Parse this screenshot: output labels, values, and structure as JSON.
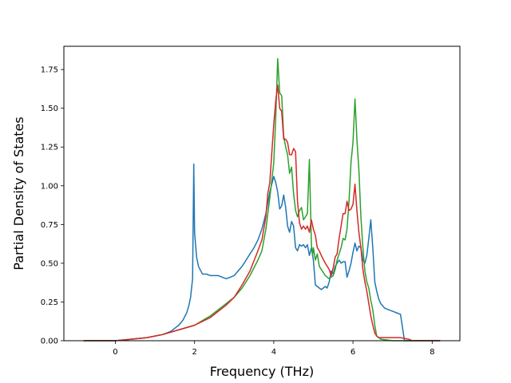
{
  "chart_data": {
    "type": "line",
    "xlabel": "Frequency (THz)",
    "ylabel": "Partial Density of States",
    "xlim": [
      -1.3,
      8.7
    ],
    "ylim": [
      0.0,
      1.9
    ],
    "xticks": [
      0,
      2,
      4,
      6,
      8
    ],
    "xtick_labels": [
      "0",
      "2",
      "4",
      "6",
      "8"
    ],
    "yticks": [
      0.0,
      0.25,
      0.5,
      0.75,
      1.0,
      1.25,
      1.5,
      1.75
    ],
    "ytick_labels": [
      "0.00",
      "0.25",
      "0.50",
      "0.75",
      "1.00",
      "1.25",
      "1.50",
      "1.75"
    ],
    "grid": false,
    "series": [
      {
        "color": "#1f77b4",
        "x": [
          -0.8,
          0.0,
          0.4,
          0.8,
          1.2,
          1.4,
          1.6,
          1.7,
          1.8,
          1.85,
          1.9,
          1.95,
          1.98,
          2.0,
          2.05,
          2.1,
          2.2,
          2.3,
          2.4,
          2.5,
          2.6,
          2.7,
          2.8,
          2.9,
          3.0,
          3.1,
          3.2,
          3.3,
          3.4,
          3.5,
          3.6,
          3.7,
          3.8,
          3.9,
          4.0,
          4.05,
          4.1,
          4.15,
          4.2,
          4.25,
          4.3,
          4.35,
          4.4,
          4.45,
          4.5,
          4.55,
          4.6,
          4.65,
          4.7,
          4.75,
          4.8,
          4.85,
          4.9,
          4.95,
          5.0,
          5.05,
          5.1,
          5.15,
          5.2,
          5.25,
          5.3,
          5.35,
          5.4,
          5.45,
          5.5,
          5.55,
          5.6,
          5.65,
          5.7,
          5.75,
          5.8,
          5.85,
          5.9,
          5.95,
          6.0,
          6.05,
          6.1,
          6.15,
          6.2,
          6.25,
          6.3,
          6.35,
          6.4,
          6.45,
          6.5,
          6.55,
          6.6,
          6.65,
          6.7,
          6.8,
          6.9,
          7.0,
          7.1,
          7.2,
          7.3,
          7.4,
          7.45,
          7.5,
          8.2
        ],
        "y": [
          0.0,
          0.0,
          0.01,
          0.02,
          0.04,
          0.06,
          0.1,
          0.13,
          0.18,
          0.22,
          0.28,
          0.4,
          1.14,
          0.7,
          0.54,
          0.48,
          0.43,
          0.43,
          0.42,
          0.42,
          0.42,
          0.41,
          0.4,
          0.41,
          0.42,
          0.45,
          0.48,
          0.52,
          0.56,
          0.6,
          0.65,
          0.72,
          0.82,
          0.96,
          1.06,
          1.02,
          0.96,
          0.85,
          0.87,
          0.94,
          0.86,
          0.74,
          0.7,
          0.77,
          0.74,
          0.6,
          0.58,
          0.62,
          0.61,
          0.62,
          0.6,
          0.62,
          0.55,
          0.6,
          0.52,
          0.36,
          0.35,
          0.34,
          0.33,
          0.34,
          0.35,
          0.34,
          0.38,
          0.45,
          0.43,
          0.48,
          0.5,
          0.52,
          0.5,
          0.51,
          0.51,
          0.41,
          0.45,
          0.5,
          0.57,
          0.63,
          0.58,
          0.61,
          0.6,
          0.52,
          0.5,
          0.55,
          0.66,
          0.78,
          0.6,
          0.38,
          0.32,
          0.27,
          0.24,
          0.21,
          0.2,
          0.19,
          0.18,
          0.17,
          0.0,
          0.0,
          0.0,
          0.0,
          0.0
        ]
      },
      {
        "color": "#2ca02c",
        "x": [
          -0.8,
          0.0,
          0.4,
          0.8,
          1.2,
          1.6,
          2.0,
          2.4,
          2.8,
          3.0,
          3.2,
          3.4,
          3.6,
          3.7,
          3.8,
          3.9,
          4.0,
          4.05,
          4.1,
          4.15,
          4.2,
          4.25,
          4.3,
          4.35,
          4.4,
          4.45,
          4.5,
          4.55,
          4.6,
          4.65,
          4.7,
          4.75,
          4.8,
          4.85,
          4.9,
          4.95,
          4.98,
          5.0,
          5.05,
          5.1,
          5.15,
          5.2,
          5.3,
          5.4,
          5.5,
          5.55,
          5.6,
          5.65,
          5.7,
          5.75,
          5.8,
          5.85,
          5.9,
          5.95,
          6.0,
          6.05,
          6.1,
          6.15,
          6.2,
          6.25,
          6.3,
          6.35,
          6.4,
          6.45,
          6.5,
          6.55,
          6.6,
          6.65,
          6.7,
          7.0,
          7.4,
          8.2
        ],
        "y": [
          0.0,
          0.0,
          0.01,
          0.02,
          0.04,
          0.07,
          0.1,
          0.16,
          0.24,
          0.28,
          0.34,
          0.42,
          0.52,
          0.58,
          0.72,
          0.92,
          1.15,
          1.45,
          1.82,
          1.6,
          1.58,
          1.32,
          1.25,
          1.2,
          1.08,
          1.12,
          0.95,
          0.84,
          0.8,
          0.84,
          0.86,
          0.78,
          0.8,
          0.82,
          1.17,
          0.62,
          0.55,
          0.6,
          0.52,
          0.56,
          0.48,
          0.46,
          0.42,
          0.4,
          0.42,
          0.46,
          0.52,
          0.56,
          0.6,
          0.66,
          0.65,
          0.72,
          0.9,
          1.15,
          1.28,
          1.56,
          1.3,
          1.1,
          0.8,
          0.6,
          0.45,
          0.38,
          0.34,
          0.26,
          0.2,
          0.1,
          0.03,
          0.02,
          0.01,
          0.0,
          0.0,
          0.0
        ]
      },
      {
        "color": "#d62728",
        "x": [
          -0.8,
          0.0,
          0.4,
          0.8,
          1.2,
          1.6,
          2.0,
          2.4,
          2.8,
          3.0,
          3.2,
          3.4,
          3.6,
          3.7,
          3.8,
          3.85,
          3.9,
          4.0,
          4.05,
          4.1,
          4.15,
          4.2,
          4.25,
          4.3,
          4.35,
          4.4,
          4.45,
          4.5,
          4.55,
          4.6,
          4.65,
          4.7,
          4.75,
          4.8,
          4.85,
          4.9,
          4.95,
          5.0,
          5.05,
          5.1,
          5.15,
          5.2,
          5.3,
          5.4,
          5.45,
          5.5,
          5.55,
          5.6,
          5.65,
          5.7,
          5.75,
          5.8,
          5.85,
          5.9,
          5.95,
          6.0,
          6.05,
          6.1,
          6.15,
          6.2,
          6.25,
          6.3,
          6.35,
          6.4,
          6.45,
          6.5,
          6.55,
          6.6,
          6.65,
          6.7,
          6.8,
          7.0,
          7.2,
          7.4,
          7.5,
          8.2
        ],
        "y": [
          0.0,
          0.0,
          0.01,
          0.02,
          0.04,
          0.07,
          0.1,
          0.15,
          0.23,
          0.28,
          0.36,
          0.45,
          0.58,
          0.65,
          0.8,
          0.95,
          1.02,
          1.4,
          1.55,
          1.65,
          1.5,
          1.48,
          1.3,
          1.3,
          1.28,
          1.2,
          1.2,
          1.24,
          1.22,
          0.9,
          0.76,
          0.72,
          0.74,
          0.72,
          0.74,
          0.7,
          0.78,
          0.72,
          0.68,
          0.6,
          0.58,
          0.55,
          0.5,
          0.46,
          0.42,
          0.47,
          0.54,
          0.56,
          0.66,
          0.74,
          0.82,
          0.82,
          0.9,
          0.84,
          0.85,
          0.88,
          1.01,
          0.84,
          0.7,
          0.6,
          0.46,
          0.38,
          0.32,
          0.24,
          0.16,
          0.1,
          0.05,
          0.03,
          0.02,
          0.02,
          0.02,
          0.02,
          0.02,
          0.01,
          0.0,
          0.0
        ]
      }
    ]
  }
}
